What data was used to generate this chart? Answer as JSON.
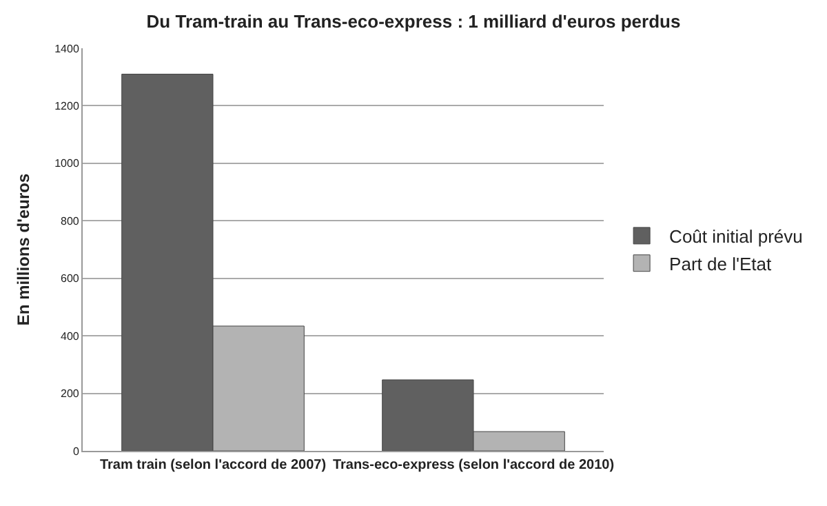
{
  "chart_data": {
    "type": "bar",
    "title": "Du Tram-train au Trans-eco-express : 1 milliard d'euros perdus",
    "ylabel": "En millions d'euros",
    "categories": [
      "Tram train (selon l'accord de 2007)",
      "Trans-eco-express (selon l'accord de 2010)"
    ],
    "series": [
      {
        "name": "Coût initial prévu",
        "color": "#606060",
        "values": [
          1310,
          247
        ]
      },
      {
        "name": "Part de l'Etat",
        "color": "#b3b3b3",
        "values": [
          434,
          67
        ]
      }
    ],
    "ylim": [
      0,
      1400
    ],
    "yticks": [
      0,
      200,
      400,
      600,
      800,
      1000,
      1200,
      1400
    ],
    "grid": "y",
    "legend": "right"
  }
}
